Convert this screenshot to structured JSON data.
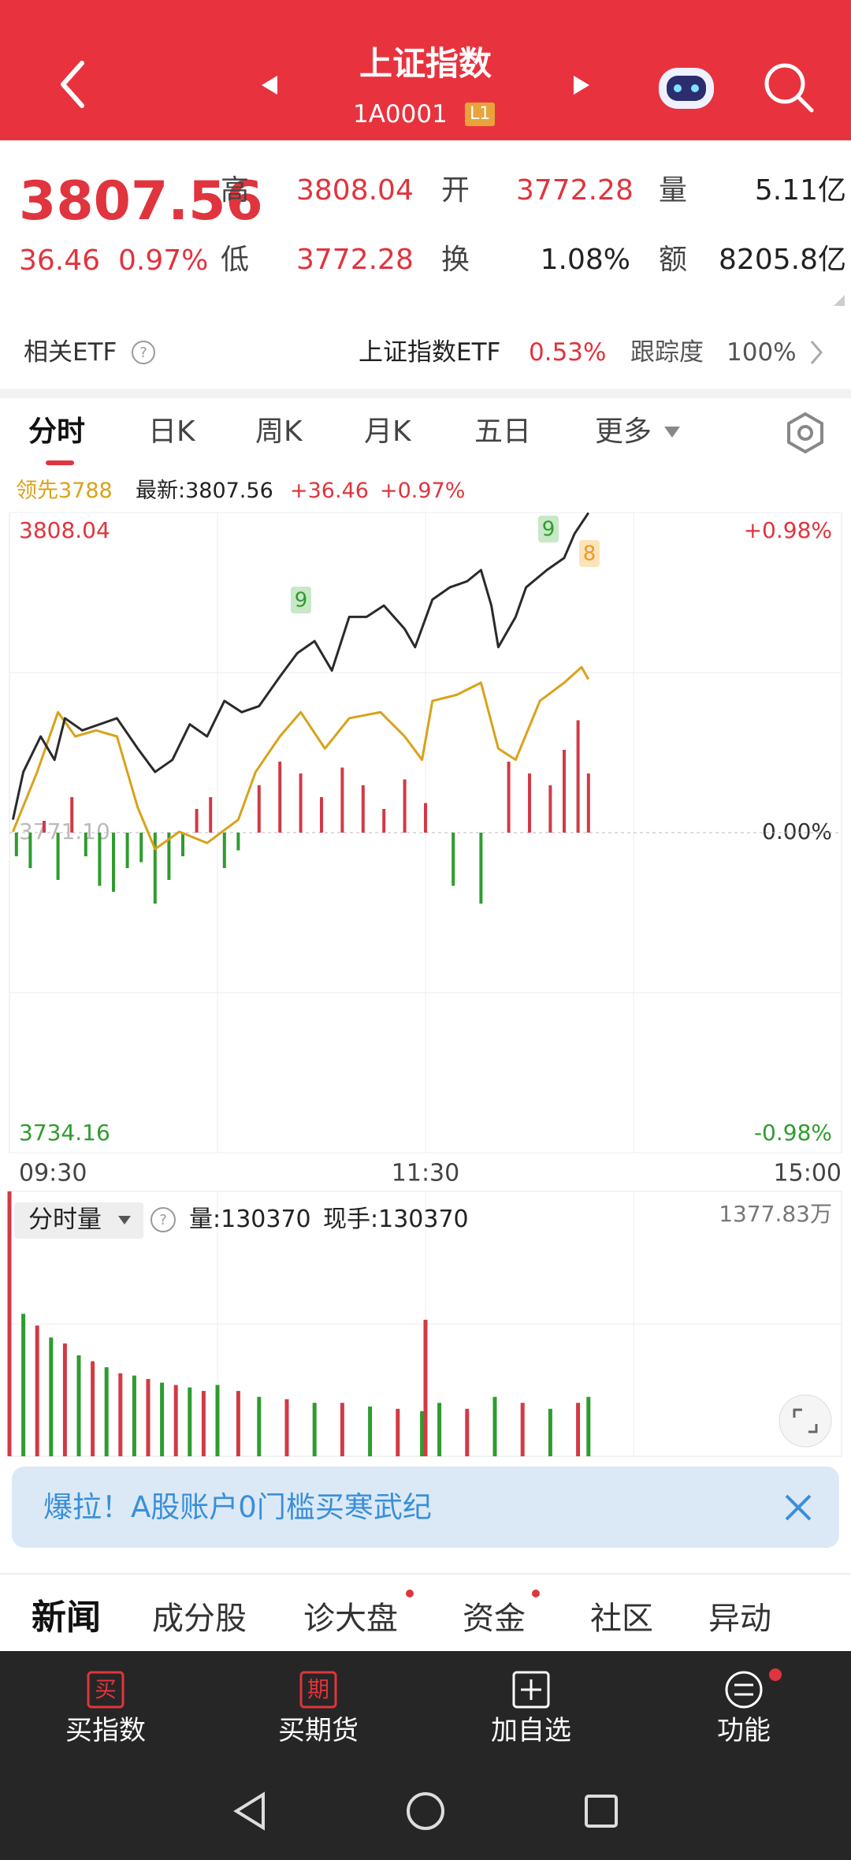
{
  "header": {
    "title": "上证指数",
    "code": "1A0001",
    "level": "L1"
  },
  "quote": {
    "price": "3807.56",
    "change": "36.46",
    "change_pct": "0.97%",
    "fields": [
      {
        "label": "高",
        "value": "3808.04"
      },
      {
        "label": "开",
        "value": "3772.28"
      },
      {
        "label": "量",
        "value": "5.11亿"
      },
      {
        "label": "低",
        "value": "3772.28"
      },
      {
        "label": "换",
        "value": "1.08%"
      },
      {
        "label": "额",
        "value": "8205.8亿"
      }
    ]
  },
  "etf": {
    "label": "相关ETF",
    "name": "上证指数ETF",
    "change": "0.53%",
    "tracking_label": "跟踪度",
    "tracking": "100%"
  },
  "tabs": [
    "分时",
    "日K",
    "周K",
    "月K",
    "五日",
    "更多"
  ],
  "chart_data": [
    {
      "type": "line",
      "change_labels": [
        "+36.46",
        "+0.97%"
      ],
      "annotations": [
        "9",
        "9",
        "8"
      ],
      "xlim": [
        0,
        240
      ],
      "xticks": [
        {
          "value": 0,
          "label": "09:30"
        },
        {
          "value": 120,
          "label": "11:30"
        },
        {
          "value": 240,
          "label": "15:00"
        }
      ],
      "ylim": [
        3734.16,
        3808.04
      ],
      "yticks": [
        3808.04,
        {
          "value": 3771.1,
          "label": "3771.10"
        },
        3734.16
      ],
      "y2lim": [
        -0.98,
        0.98
      ],
      "y2ticks": [
        {
          "value": 0.98,
          "label": "+0.98%"
        },
        {
          "value": 0,
          "label": "0.00%"
        },
        {
          "value": -0.98,
          "label": "-0.98%"
        }
      ],
      "series": [
        {
          "name": "领先3788",
          "color": "#d9a21b",
          "x": [
            1,
            8,
            14,
            19,
            25,
            31,
            37,
            42,
            49,
            57,
            66,
            71,
            78,
            84,
            91,
            98,
            107,
            114,
            119,
            122,
            129,
            136,
            141,
            146,
            153,
            160,
            165,
            167
          ],
          "values": [
            3771.2,
            3778.1,
            3785.0,
            3782.2,
            3782.9,
            3782.2,
            3774.0,
            3769.2,
            3771.2,
            3769.9,
            3772.6,
            3778.1,
            3782.2,
            3785.0,
            3780.8,
            3784.3,
            3785.0,
            3782.2,
            3779.5,
            3786.3,
            3787.0,
            3788.4,
            3780.8,
            3779.5,
            3786.3,
            3788.4,
            3790.2,
            3788.8
          ]
        },
        {
          "name": "最新:3807.56",
          "color": "#2a2a2a",
          "x": [
            1,
            4,
            9,
            13,
            16,
            21,
            26,
            31,
            37,
            42,
            47,
            52,
            57,
            62,
            67,
            72,
            78,
            83,
            88,
            93,
            98,
            103,
            108,
            114,
            117,
            122,
            127,
            132,
            136,
            139,
            141,
            146,
            149,
            155,
            160,
            163,
            167
          ],
          "values": [
            3772.6,
            3778.1,
            3782.2,
            3779.5,
            3784.3,
            3782.9,
            3783.6,
            3784.3,
            3780.8,
            3778.1,
            3779.5,
            3783.6,
            3782.2,
            3786.3,
            3785.0,
            3785.7,
            3789.1,
            3791.8,
            3793.2,
            3789.8,
            3796.0,
            3796.0,
            3797.3,
            3794.6,
            3792.5,
            3798.0,
            3799.4,
            3800.1,
            3801.4,
            3797.3,
            3792.5,
            3796.0,
            3799.4,
            3801.4,
            3802.8,
            3805.6,
            3808.0
          ]
        }
      ]
    },
    {
      "type": "bar",
      "x": [
        2,
        6,
        10,
        14,
        18,
        22,
        26,
        30,
        34,
        38,
        42,
        46,
        50,
        54,
        58,
        62,
        66,
        72,
        78,
        84,
        90,
        96,
        102,
        108,
        114,
        120,
        128,
        136,
        144,
        150,
        156,
        160,
        164,
        167
      ],
      "values": [
        -20,
        -30,
        10,
        -40,
        30,
        -20,
        -45,
        -50,
        -30,
        -25,
        -60,
        -40,
        -20,
        20,
        30,
        -30,
        -15,
        40,
        60,
        50,
        30,
        55,
        40,
        20,
        45,
        25,
        -45,
        -60,
        60,
        50,
        40,
        70,
        95,
        50
      ],
      "colors": {
        "up": "#d23a45",
        "down": "#2e9c2e"
      }
    },
    {
      "type": "bar",
      "title": "分时量",
      "labels": [
        "量:130370",
        "现手:130370"
      ],
      "x": [
        0,
        4,
        8,
        12,
        16,
        20,
        24,
        28,
        32,
        36,
        40,
        44,
        48,
        52,
        56,
        60,
        66,
        72,
        80,
        88,
        96,
        104,
        112,
        119,
        120,
        124,
        132,
        140,
        148,
        156,
        164,
        167
      ],
      "values": [
        1377.83,
        741,
        680,
        618,
        587,
        525,
        494,
        463,
        432,
        420,
        402,
        383,
        371,
        358,
        340,
        371,
        340,
        309,
        297,
        278,
        278,
        259,
        247,
        235,
        710,
        278,
        247,
        309,
        278,
        247,
        278,
        309
      ],
      "ylim": [
        0,
        1377.83
      ],
      "yticks": [
        {
          "value": 1377.83,
          "label": "1377.83万"
        }
      ],
      "colors": [
        "#d23a45",
        "#2e9c2e"
      ]
    }
  ],
  "banner": "爆拉！A股账户0门槛买寒武纪",
  "news_tabs": [
    "新闻",
    "成分股",
    "诊大盘",
    "资金",
    "社区",
    "异动"
  ],
  "nav": [
    {
      "icon": "买",
      "label": "买指数"
    },
    {
      "icon": "期",
      "label": "买期货"
    },
    {
      "label": "加自选"
    },
    {
      "label": "功能"
    }
  ]
}
